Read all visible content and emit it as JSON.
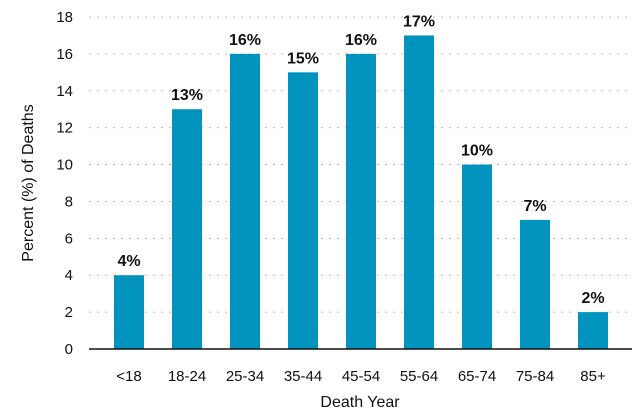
{
  "chart_data": {
    "type": "bar",
    "title": "",
    "xlabel": "Death Year",
    "ylabel": "Percent (%) of Deaths",
    "categories": [
      "<18",
      "18-24",
      "25-34",
      "35-44",
      "45-54",
      "55-64",
      "65-74",
      "75-84",
      "85+"
    ],
    "values": [
      4,
      13,
      16,
      15,
      16,
      17,
      10,
      7,
      2
    ],
    "data_labels": [
      "4%",
      "13%",
      "16%",
      "15%",
      "16%",
      "17%",
      "10%",
      "7%",
      "2%"
    ],
    "ylim": [
      0,
      18
    ],
    "yticks": [
      0,
      2,
      4,
      6,
      8,
      10,
      12,
      14,
      16,
      18
    ],
    "grid": "horizontal dotted",
    "legend": "none",
    "bar_color": "#0093bd"
  }
}
